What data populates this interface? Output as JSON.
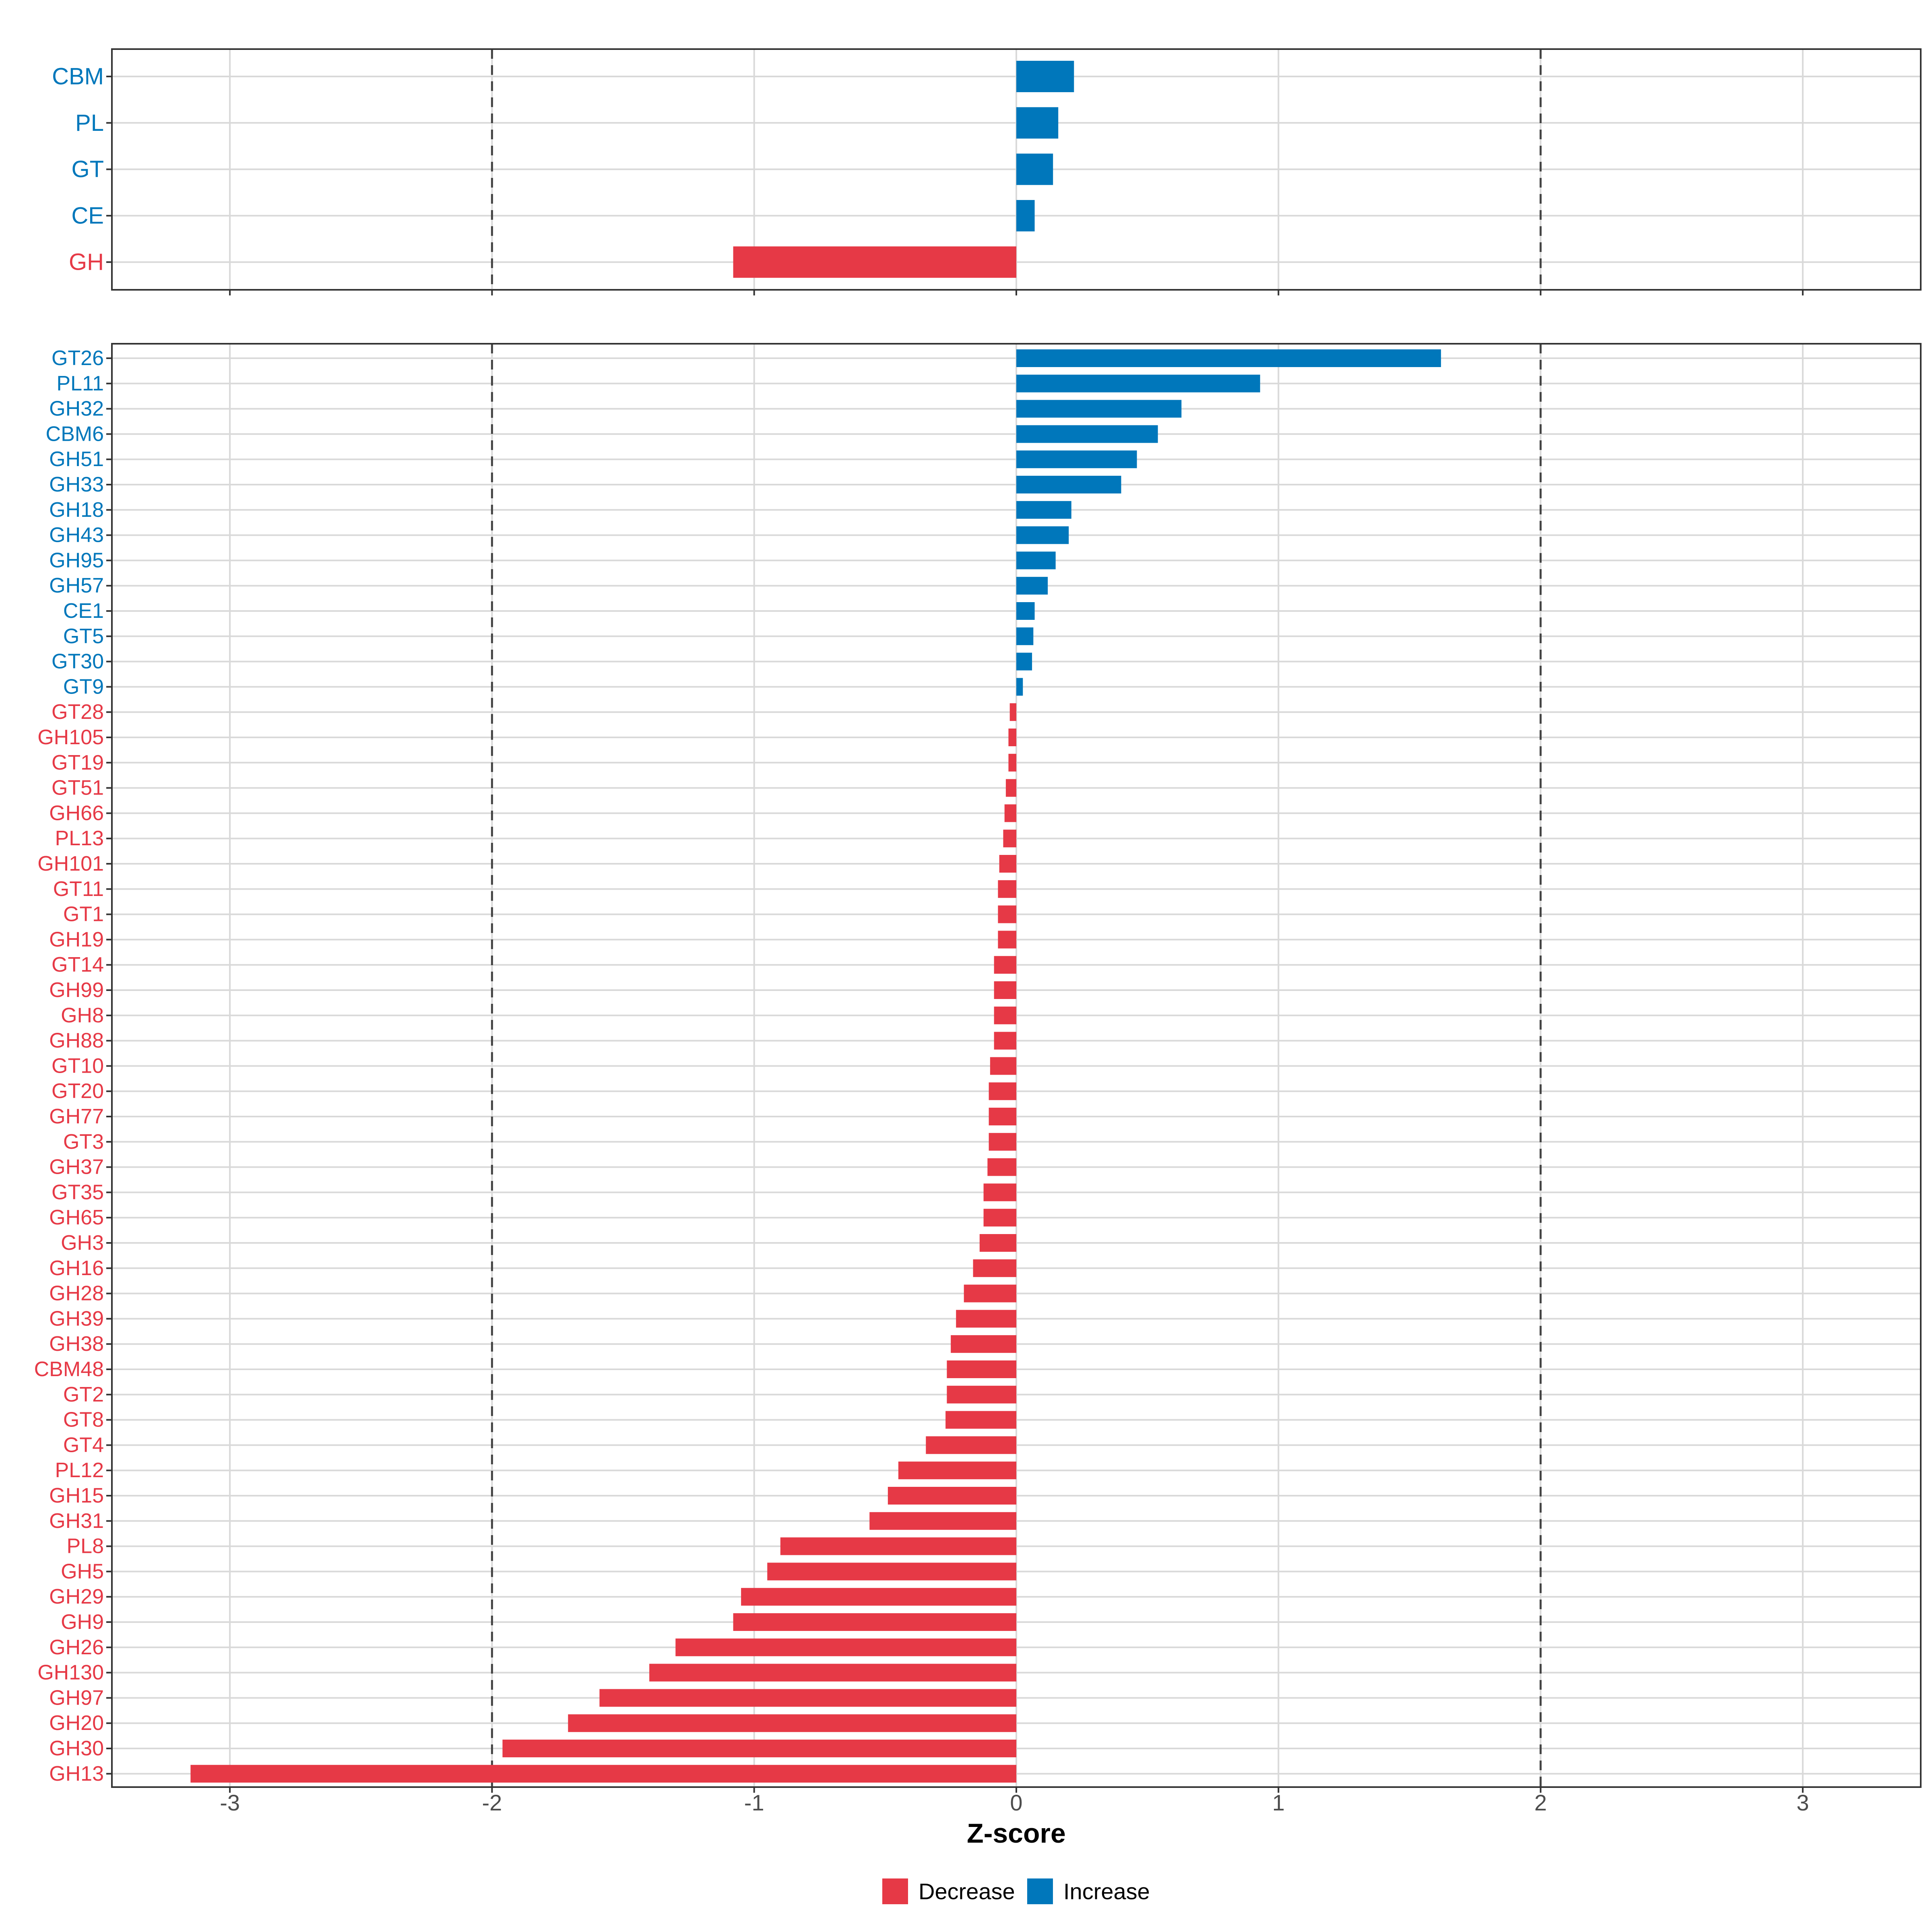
{
  "colors": {
    "decrease": "#E63946",
    "increase": "#0077BB",
    "grid": "#D9D9D9",
    "panel_border": "#333333",
    "dashed": "#444444",
    "axis_text": "#4D4D4D",
    "title": "#000000"
  },
  "chart_data": {
    "type": "bar",
    "orientation": "horizontal",
    "xlabel": "Z-score",
    "xlim": [
      -3.45,
      3.45
    ],
    "xticks": [
      -3,
      -2,
      -1,
      0,
      1,
      2,
      3
    ],
    "xtick_labels": [
      "-3",
      "-2",
      "-1",
      "0",
      "1",
      "2",
      "3"
    ],
    "reference_lines": [
      -2,
      2
    ],
    "grid": true,
    "legend": {
      "position": "bottom",
      "entries": [
        {
          "key": "decrease",
          "label": "Decrease"
        },
        {
          "key": "increase",
          "label": "Increase"
        }
      ]
    },
    "panels": [
      {
        "name": "class",
        "categories": [
          "CBM",
          "PL",
          "GT",
          "CE",
          "GH"
        ],
        "values": [
          0.22,
          0.16,
          0.14,
          0.07,
          -1.08
        ]
      },
      {
        "name": "family",
        "categories": [
          "GT26",
          "PL11",
          "GH32",
          "CBM6",
          "GH51",
          "GH33",
          "GH18",
          "GH43",
          "GH95",
          "GH57",
          "CE1",
          "GT5",
          "GT30",
          "GT9",
          "GT28",
          "GH105",
          "GT19",
          "GT51",
          "GH66",
          "PL13",
          "GH101",
          "GT11",
          "GT1",
          "GH19",
          "GT14",
          "GH99",
          "GH8",
          "GH88",
          "GT10",
          "GT20",
          "GH77",
          "GT3",
          "GH37",
          "GT35",
          "GH65",
          "GH3",
          "GH16",
          "GH28",
          "GH39",
          "GH38",
          "CBM48",
          "GT2",
          "GT8",
          "GT4",
          "PL12",
          "GH15",
          "GH31",
          "PL8",
          "GH5",
          "GH29",
          "GH9",
          "GH26",
          "GH130",
          "GH97",
          "GH20",
          "GH30",
          "GH13"
        ],
        "values": [
          1.62,
          0.93,
          0.63,
          0.54,
          0.46,
          0.4,
          0.21,
          0.2,
          0.15,
          0.12,
          0.07,
          0.065,
          0.06,
          0.025,
          -0.025,
          -0.03,
          -0.03,
          -0.04,
          -0.045,
          -0.05,
          -0.065,
          -0.07,
          -0.07,
          -0.07,
          -0.085,
          -0.085,
          -0.085,
          -0.085,
          -0.1,
          -0.105,
          -0.105,
          -0.105,
          -0.11,
          -0.125,
          -0.125,
          -0.14,
          -0.165,
          -0.2,
          -0.23,
          -0.25,
          -0.265,
          -0.265,
          -0.27,
          -0.345,
          -0.45,
          -0.49,
          -0.56,
          -0.9,
          -0.95,
          -1.05,
          -1.08,
          -1.3,
          -1.4,
          -1.59,
          -1.71,
          -1.96,
          -3.15
        ]
      }
    ]
  }
}
